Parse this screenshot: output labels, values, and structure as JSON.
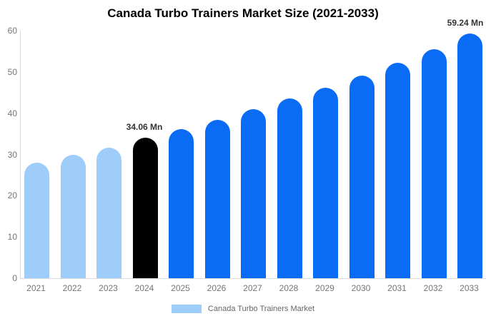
{
  "chart_data": {
    "type": "bar",
    "title": "Canada Turbo Trainers Market Size (2021-2033)",
    "categories": [
      "2021",
      "2022",
      "2023",
      "2024",
      "2025",
      "2026",
      "2027",
      "2028",
      "2029",
      "2030",
      "2031",
      "2032",
      "2033"
    ],
    "values": [
      28.0,
      30.0,
      31.7,
      34.06,
      36.1,
      38.4,
      41.0,
      43.6,
      46.2,
      49.1,
      52.2,
      55.5,
      59.24
    ],
    "bar_colors": [
      "#9fcdfa",
      "#9fcdfa",
      "#9fcdfa",
      "#000000",
      "#0a6cf5",
      "#0a6cf5",
      "#0a6cf5",
      "#0a6cf5",
      "#0a6cf5",
      "#0a6cf5",
      "#0a6cf5",
      "#0a6cf5",
      "#0a6cf5"
    ],
    "point_labels": [
      null,
      null,
      null,
      "34.06 Mn",
      null,
      null,
      null,
      null,
      null,
      null,
      null,
      null,
      "59.24 Mn"
    ],
    "xlabel": "",
    "ylabel": "",
    "ylim": [
      0,
      60
    ],
    "yticks": [
      0,
      10,
      20,
      30,
      40,
      50,
      60
    ],
    "grid": false,
    "legend_position": "bottom",
    "legend": [
      {
        "label": "Canada Turbo Trainers Market",
        "color": "#9fcdfa"
      }
    ],
    "colors": {
      "historical": "#9fcdfa",
      "highlight": "#000000",
      "forecast": "#0a6cf5",
      "axis_line": "#d9d9d9",
      "tick_text": "#757575",
      "point_label_text": "#333333",
      "title_text": "#000000"
    }
  }
}
